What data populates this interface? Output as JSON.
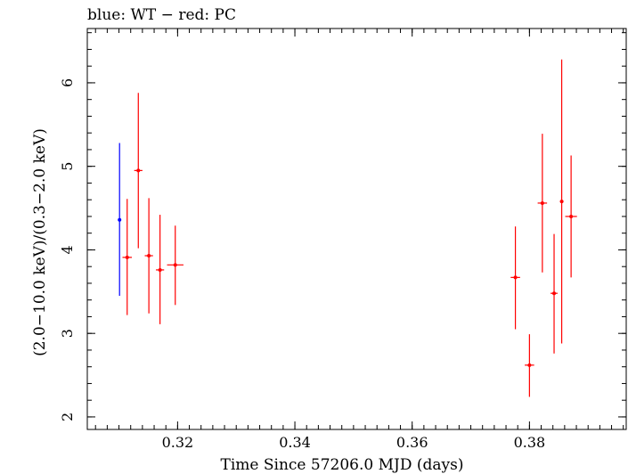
{
  "chart_data": {
    "type": "scatter",
    "title": "blue: WT − red: PC",
    "xlabel": "Time Since 57206.0 MJD (days)",
    "ylabel": "(2.0−10.0 keV)/(0.3−2.0 keV)",
    "xlim": [
      0.3046,
      0.3965
    ],
    "ylim": [
      1.85,
      6.65
    ],
    "x_ticks": [
      0.32,
      0.34,
      0.36,
      0.38
    ],
    "x_tick_labels": [
      "0.32",
      "0.34",
      "0.36",
      "0.38"
    ],
    "y_ticks": [
      2,
      3,
      4,
      5,
      6
    ],
    "y_tick_labels": [
      "2",
      "3",
      "4",
      "5",
      "6"
    ],
    "grid": false,
    "series": [
      {
        "mode": "WT",
        "color": "#0000ff",
        "points": [
          {
            "x": 0.3101,
            "y": 4.36,
            "xerr": 0.0,
            "ylo": 3.45,
            "yhi": 5.28
          }
        ]
      },
      {
        "mode": "PC",
        "color": "#ff0000",
        "points": [
          {
            "x": 0.3114,
            "y": 3.91,
            "xerr": 0.0008,
            "ylo": 3.22,
            "yhi": 4.61
          },
          {
            "x": 0.3133,
            "y": 4.95,
            "xerr": 0.0007,
            "ylo": 4.02,
            "yhi": 5.88
          },
          {
            "x": 0.3151,
            "y": 3.93,
            "xerr": 0.0007,
            "ylo": 3.24,
            "yhi": 4.62
          },
          {
            "x": 0.317,
            "y": 3.76,
            "xerr": 0.0007,
            "ylo": 3.11,
            "yhi": 4.42
          },
          {
            "x": 0.3196,
            "y": 3.82,
            "xerr": 0.0014,
            "ylo": 3.34,
            "yhi": 4.29
          },
          {
            "x": 0.3776,
            "y": 3.67,
            "xerr": 0.0008,
            "ylo": 3.05,
            "yhi": 4.28
          },
          {
            "x": 0.38,
            "y": 2.62,
            "xerr": 0.0008,
            "ylo": 2.24,
            "yhi": 2.99
          },
          {
            "x": 0.3822,
            "y": 4.56,
            "xerr": 0.0008,
            "ylo": 3.73,
            "yhi": 5.39
          },
          {
            "x": 0.3842,
            "y": 3.48,
            "xerr": 0.0006,
            "ylo": 2.76,
            "yhi": 4.19
          },
          {
            "x": 0.3855,
            "y": 4.58,
            "xerr": 0.0003,
            "ylo": 2.88,
            "yhi": 6.28
          },
          {
            "x": 0.3871,
            "y": 4.4,
            "xerr": 0.001,
            "ylo": 3.67,
            "yhi": 5.13
          }
        ]
      }
    ]
  }
}
